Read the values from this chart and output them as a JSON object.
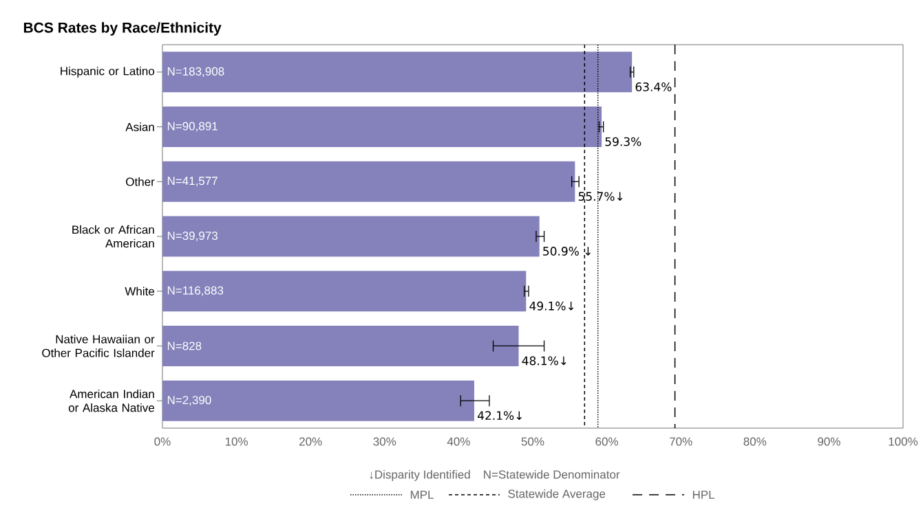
{
  "chart_data": {
    "type": "bar",
    "orientation": "horizontal",
    "title": "BCS Rates by Race/Ethnicity",
    "categories": [
      "Hispanic or Latino",
      "Asian",
      "Other",
      "Black or African American",
      "White",
      "Native Hawaiian or Other Pacific Islander",
      "American Indian or Alaska Native"
    ],
    "values": [
      63.4,
      59.3,
      55.7,
      50.9,
      49.1,
      48.1,
      42.1
    ],
    "value_labels": [
      "63.4%",
      "59.3%",
      "55.7%↓",
      "50.9% ↓",
      "49.1%↓",
      "48.1%↓",
      "42.1%↓"
    ],
    "errors": [
      [
        63.1,
        63.7
      ],
      [
        58.9,
        59.6
      ],
      [
        55.2,
        56.3
      ],
      [
        50.4,
        51.6
      ],
      [
        48.8,
        49.5
      ],
      [
        44.6,
        51.6
      ],
      [
        40.2,
        44.2
      ]
    ],
    "color": "#8582bb",
    "xlim": [
      0,
      100
    ],
    "xticks": [
      {
        "value": 0,
        "label": "0%"
      },
      {
        "value": 10,
        "label": "10%"
      },
      {
        "value": 20,
        "label": "20%"
      },
      {
        "value": 30,
        "label": "30%"
      },
      {
        "value": 40,
        "label": "40%"
      },
      {
        "value": 50,
        "label": "50%"
      },
      {
        "value": 60,
        "label": "60%"
      },
      {
        "value": 70,
        "label": "70%"
      },
      {
        "value": 80,
        "label": "80%"
      },
      {
        "value": 90,
        "label": "90%"
      },
      {
        "value": 100,
        "label": "100%"
      }
    ],
    "ref_lines": [
      {
        "axis": "x",
        "value": 58.8,
        "label": "MPL",
        "line_style": "dotted",
        "color": "#000000"
      },
      {
        "axis": "x",
        "value": 57.0,
        "label": "Statewide Average",
        "line_style": "dashed",
        "color": "#000000"
      },
      {
        "axis": "x",
        "value": 69.2,
        "label": "HPL",
        "line_style": "long dashed",
        "color": "#000000"
      }
    ],
    "legend": "bottom",
    "grid": false,
    "annotations": [
      {
        "text": "N=183,908",
        "y": "Hispanic or Latino"
      },
      {
        "text": "N=90,891",
        "y": "Asian"
      },
      {
        "text": "N=41,577",
        "y": "Other"
      },
      {
        "text": "N=39,973",
        "y": "Black or African American"
      },
      {
        "text": "N=116,883",
        "y": "White"
      },
      {
        "text": "N=828",
        "y": "Native Hawaiian or Other Pacific Islander"
      },
      {
        "text": "N=2,390",
        "y": "American Indian or Alaska Native"
      },
      "↓Disparity Identified",
      "N=Statewide Denominator"
    ]
  }
}
